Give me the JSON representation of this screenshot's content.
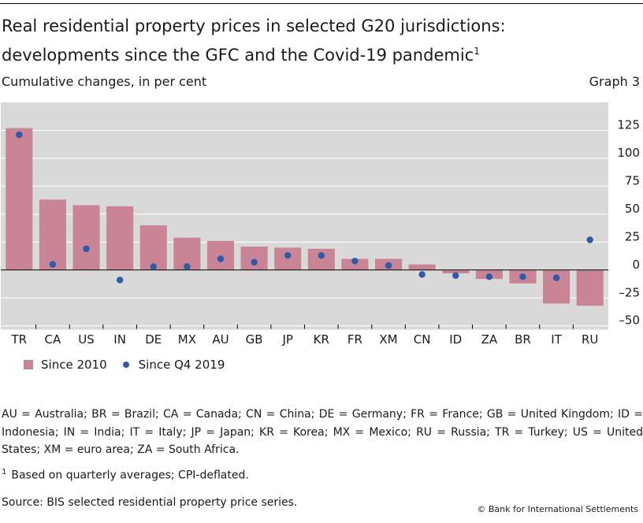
{
  "header": {
    "title_line1": "Real residential property prices in selected G20 jurisdictions:",
    "title_line2": "developments since the GFC and the Covid-19 pandemic",
    "title_footnote_ref": "1",
    "subtitle": "Cumulative changes, in per cent",
    "graph_number": "Graph 3"
  },
  "chart_data": {
    "type": "bar",
    "categories": [
      "TR",
      "CA",
      "US",
      "IN",
      "DE",
      "MX",
      "AU",
      "GB",
      "JP",
      "KR",
      "FR",
      "XM",
      "CN",
      "ID",
      "ZA",
      "BR",
      "IT",
      "RU"
    ],
    "series": [
      {
        "name": "Since 2010",
        "type": "bar",
        "color": "#c98595",
        "values": [
          127,
          63,
          58,
          57,
          40,
          29,
          26,
          21,
          20,
          19,
          10,
          10,
          5,
          -3,
          -8,
          -12,
          -30,
          -32
        ]
      },
      {
        "name": "Since Q4 2019",
        "type": "scatter",
        "color": "#2e5aa8",
        "values": [
          121,
          5,
          19,
          -9,
          3,
          3,
          10,
          7,
          13,
          13,
          8,
          4,
          -4,
          -5,
          -6,
          -6,
          -7,
          27
        ]
      }
    ],
    "xlabel": "",
    "ylabel": "",
    "ylim": [
      -53,
      150
    ],
    "yticks": [
      125,
      100,
      75,
      50,
      25,
      0,
      -25,
      -50
    ],
    "ytick_labels": [
      "125",
      "100",
      "75",
      "50",
      "25",
      "0",
      "–25",
      "–50"
    ],
    "y_axis_side": "right",
    "grid": "horizontal",
    "legend_placement": "bottom-left"
  },
  "legend": {
    "bar_label": "Since 2010",
    "dot_label": "Since Q4 2019"
  },
  "abbreviations": "AU = Australia; BR = Brazil; CA = Canada; CN = China; DE = Germany; FR = France; GB = United Kingdom; ID = Indonesia; IN = India; IT = Italy; JP = Japan; KR = Korea; MX = Mexico; RU = Russia; TR = Turkey; US = United States; XM = euro area; ZA = South Africa.",
  "footnote": {
    "marker": "1",
    "text": "Based on quarterly averages; CPI-deflated."
  },
  "source": "Source: BIS selected residential property price series.",
  "copyright": "© Bank for International Settlements"
}
